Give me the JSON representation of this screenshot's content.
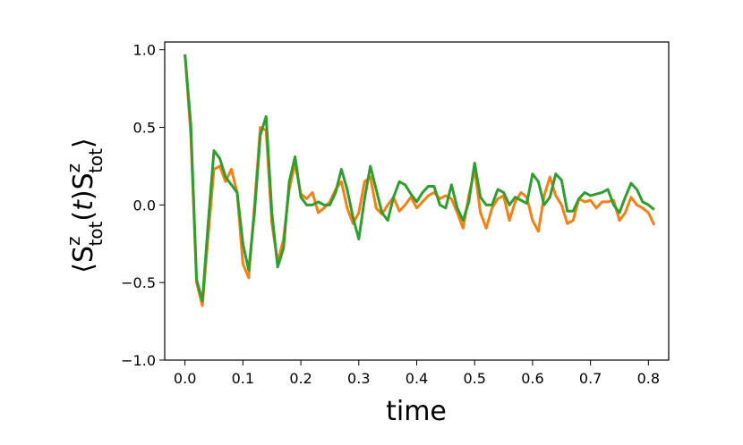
{
  "chart_data": {
    "type": "line",
    "title": "",
    "xlabel": "time",
    "ylabel": "⟨S_tot^z(t) S_tot^z⟩",
    "xlim": [
      -0.035,
      0.835
    ],
    "ylim": [
      -1.0,
      1.05
    ],
    "x_ticks": [
      "0.0",
      "0.1",
      "0.2",
      "0.3",
      "0.4",
      "0.5",
      "0.6",
      "0.7",
      "0.8"
    ],
    "x_tick_values": [
      0.0,
      0.1,
      0.2,
      0.3,
      0.4,
      0.5,
      0.6,
      0.7,
      0.8
    ],
    "y_ticks": [
      "−1.0",
      "−0.5",
      "0.0",
      "0.5",
      "1.0"
    ],
    "y_tick_values": [
      -1.0,
      -0.5,
      0.0,
      0.5,
      1.0
    ],
    "grid": false,
    "legend": "none",
    "series": [
      {
        "color": "#ff7f0e",
        "x": [
          0.0,
          0.01,
          0.02,
          0.03,
          0.04,
          0.05,
          0.06,
          0.07,
          0.08,
          0.09,
          0.1,
          0.11,
          0.12,
          0.13,
          0.14,
          0.15,
          0.16,
          0.17,
          0.18,
          0.19,
          0.2,
          0.21,
          0.22,
          0.23,
          0.24,
          0.25,
          0.26,
          0.27,
          0.28,
          0.29,
          0.3,
          0.31,
          0.32,
          0.33,
          0.34,
          0.35,
          0.36,
          0.37,
          0.38,
          0.39,
          0.4,
          0.41,
          0.42,
          0.43,
          0.44,
          0.45,
          0.46,
          0.47,
          0.48,
          0.49,
          0.5,
          0.51,
          0.52,
          0.53,
          0.54,
          0.55,
          0.56,
          0.57,
          0.58,
          0.59,
          0.6,
          0.61,
          0.62,
          0.63,
          0.64,
          0.65,
          0.66,
          0.67,
          0.68,
          0.69,
          0.7,
          0.71,
          0.72,
          0.73,
          0.74,
          0.75,
          0.76,
          0.77,
          0.78,
          0.79,
          0.8,
          0.81
        ],
        "y": [
          0.97,
          0.45,
          -0.5,
          -0.65,
          -0.2,
          0.23,
          0.25,
          0.15,
          0.23,
          0.08,
          -0.38,
          -0.47,
          0.0,
          0.5,
          0.48,
          -0.12,
          -0.37,
          -0.22,
          0.1,
          0.27,
          0.07,
          0.04,
          0.08,
          -0.05,
          -0.02,
          0.02,
          0.1,
          0.15,
          -0.02,
          -0.12,
          -0.05,
          0.15,
          0.18,
          -0.02,
          -0.06,
          0.0,
          0.05,
          -0.04,
          0.0,
          0.05,
          -0.02,
          0.02,
          0.06,
          0.08,
          0.04,
          0.06,
          0.04,
          -0.05,
          -0.15,
          0.06,
          0.23,
          -0.05,
          -0.15,
          -0.02,
          0.04,
          0.06,
          -0.1,
          0.02,
          0.08,
          0.05,
          -0.1,
          -0.17,
          0.06,
          0.18,
          0.06,
          0.0,
          -0.12,
          -0.1,
          0.04,
          0.02,
          0.03,
          -0.02,
          0.02,
          0.02,
          0.03,
          -0.1,
          -0.05,
          0.05,
          0.0,
          -0.02,
          -0.05,
          -0.13
        ]
      },
      {
        "color": "#2ca02c",
        "x": [
          0.0,
          0.01,
          0.02,
          0.03,
          0.04,
          0.05,
          0.06,
          0.07,
          0.08,
          0.09,
          0.1,
          0.11,
          0.12,
          0.13,
          0.14,
          0.15,
          0.16,
          0.17,
          0.18,
          0.19,
          0.2,
          0.21,
          0.22,
          0.23,
          0.24,
          0.25,
          0.26,
          0.27,
          0.28,
          0.29,
          0.3,
          0.31,
          0.32,
          0.33,
          0.34,
          0.35,
          0.36,
          0.37,
          0.38,
          0.39,
          0.4,
          0.41,
          0.42,
          0.43,
          0.44,
          0.45,
          0.46,
          0.47,
          0.48,
          0.49,
          0.5,
          0.51,
          0.52,
          0.53,
          0.54,
          0.55,
          0.56,
          0.57,
          0.58,
          0.59,
          0.6,
          0.61,
          0.62,
          0.63,
          0.64,
          0.65,
          0.66,
          0.67,
          0.68,
          0.69,
          0.7,
          0.71,
          0.72,
          0.73,
          0.74,
          0.75,
          0.76,
          0.77,
          0.78,
          0.79,
          0.8,
          0.81
        ],
        "y": [
          0.97,
          0.52,
          -0.48,
          -0.62,
          -0.12,
          0.35,
          0.3,
          0.18,
          0.13,
          0.08,
          -0.25,
          -0.42,
          -0.05,
          0.45,
          0.57,
          -0.05,
          -0.4,
          -0.28,
          0.15,
          0.31,
          0.05,
          0.0,
          0.0,
          0.02,
          0.0,
          0.0,
          0.08,
          0.23,
          0.1,
          -0.08,
          -0.22,
          0.04,
          0.25,
          0.1,
          -0.05,
          -0.1,
          0.05,
          0.15,
          0.13,
          0.07,
          0.02,
          0.08,
          0.12,
          0.12,
          0.0,
          -0.02,
          0.13,
          -0.02,
          -0.1,
          0.02,
          0.27,
          0.05,
          0.0,
          0.0,
          0.1,
          0.08,
          0.0,
          0.05,
          0.03,
          0.01,
          0.2,
          0.15,
          0.0,
          0.05,
          0.2,
          0.16,
          -0.04,
          -0.04,
          0.04,
          0.08,
          0.06,
          0.07,
          0.08,
          0.1,
          0.0,
          -0.05,
          0.05,
          0.14,
          0.1,
          0.02,
          0.0,
          -0.03
        ]
      }
    ]
  }
}
